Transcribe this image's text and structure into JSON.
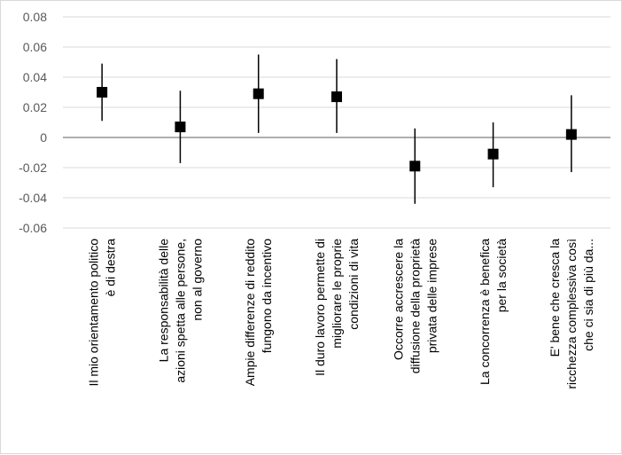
{
  "chart_data": {
    "type": "scatter",
    "title": "",
    "xlabel": "",
    "ylabel": "",
    "ylim": [
      -0.06,
      0.08
    ],
    "y_ticks": [
      {
        "value": 0.08,
        "label": "0.08"
      },
      {
        "value": 0.06,
        "label": "0.06"
      },
      {
        "value": 0.04,
        "label": "0.04"
      },
      {
        "value": 0.02,
        "label": "0.02"
      },
      {
        "value": 0,
        "label": "0"
      },
      {
        "value": -0.02,
        "label": "-0.02"
      },
      {
        "value": -0.04,
        "label": "-0.04"
      },
      {
        "value": -0.06,
        "label": "-0.06"
      }
    ],
    "grid": true,
    "legend": "none",
    "marker": "square",
    "colors": {
      "marker": "#000000",
      "errorbar": "#000000",
      "grid": "#d9d9d9",
      "zero_line": "#7f7f7f"
    },
    "categories": [
      [
        "Il mio orientamento politico",
        "è di destra"
      ],
      [
        "La responsabilità delle",
        "azioni spetta alle persone,",
        "non al governo"
      ],
      [
        "Ampie differenze di reddito",
        "fungono da incentivo"
      ],
      [
        "Il duro lavoro permette di",
        "migliorare le proprie",
        "condizioni di vita"
      ],
      [
        "Occorre accrescere la",
        "diffusione della proprietà",
        "privata delle imprese"
      ],
      [
        "La concorrenza è benefica",
        "per la società"
      ],
      [
        "E' bene che cresca la",
        "ricchezza complessiva così",
        "che ci sia di più da..."
      ]
    ],
    "values": [
      0.03,
      0.007,
      0.029,
      0.027,
      -0.019,
      -0.011,
      0.002
    ],
    "lower": [
      0.011,
      -0.017,
      0.003,
      0.003,
      -0.044,
      -0.033,
      -0.023
    ],
    "upper": [
      0.049,
      0.031,
      0.055,
      0.052,
      0.006,
      0.01,
      0.028
    ]
  }
}
